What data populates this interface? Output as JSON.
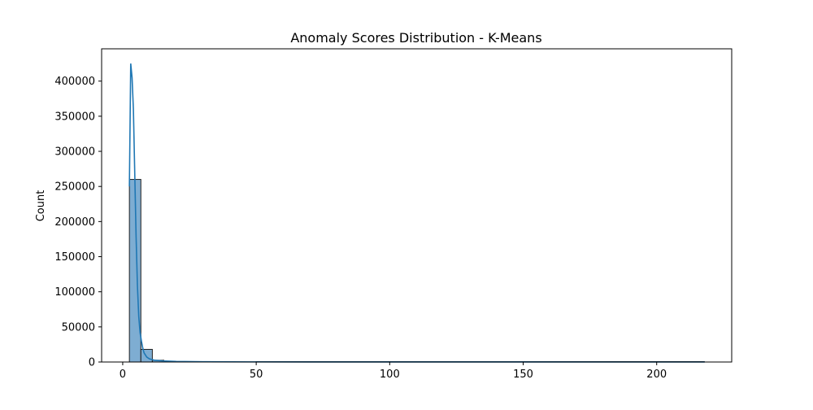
{
  "chart_data": {
    "type": "bar",
    "title": "Anomaly Scores Distribution - K-Means",
    "xlabel": "",
    "ylabel": "Count",
    "xlim": [
      -7.9,
      228.1
    ],
    "ylim": [
      0,
      446000
    ],
    "xticks": [
      0,
      50,
      100,
      150,
      200
    ],
    "yticks": [
      0,
      50000,
      100000,
      150000,
      200000,
      250000,
      300000,
      350000,
      400000
    ],
    "xtick_labels": [
      "0",
      "50",
      "100",
      "150",
      "200"
    ],
    "ytick_labels": [
      "0",
      "50000",
      "100000",
      "150000",
      "200000",
      "250000",
      "300000",
      "350000",
      "400000"
    ],
    "bin_width": 4.3,
    "bins": [
      {
        "x0": 2.5,
        "x1": 6.8,
        "count": 260000
      },
      {
        "x0": 6.8,
        "x1": 11.1,
        "count": 18000
      },
      {
        "x0": 11.1,
        "x1": 15.4,
        "count": 2500
      },
      {
        "x0": 15.4,
        "x1": 19.7,
        "count": 900
      },
      {
        "x0": 19.7,
        "x1": 24.0,
        "count": 500
      },
      {
        "x0": 24.0,
        "x1": 28.3,
        "count": 300
      },
      {
        "x0": 28.3,
        "x1": 32.6,
        "count": 200
      },
      {
        "x0": 32.6,
        "x1": 36.9,
        "count": 150
      },
      {
        "x0": 36.9,
        "x1": 41.2,
        "count": 100
      },
      {
        "x0": 41.2,
        "x1": 45.5,
        "count": 80
      },
      {
        "x0": 45.5,
        "x1": 49.8,
        "count": 60
      }
    ],
    "tail_range": [
      49.8,
      218.0
    ],
    "kde": {
      "x": [
        2.5,
        3.0,
        3.5,
        4.0,
        4.5,
        5.0,
        5.5,
        6.0,
        6.5,
        7.0,
        7.5,
        8.0,
        9.0,
        10.0,
        12.0,
        15.0,
        20.0,
        30.0,
        50.0,
        100.0,
        150.0,
        218.0
      ],
      "y": [
        250000,
        425000,
        405000,
        360000,
        270000,
        180000,
        110000,
        65000,
        42000,
        30000,
        20000,
        13000,
        7000,
        4500,
        2500,
        1500,
        800,
        400,
        150,
        40,
        20,
        5
      ]
    },
    "bar_fill": "#7eadd2",
    "bar_edge": "#1f1f1f",
    "line_color": "#1f77b4",
    "grid": false,
    "legend": "none"
  }
}
